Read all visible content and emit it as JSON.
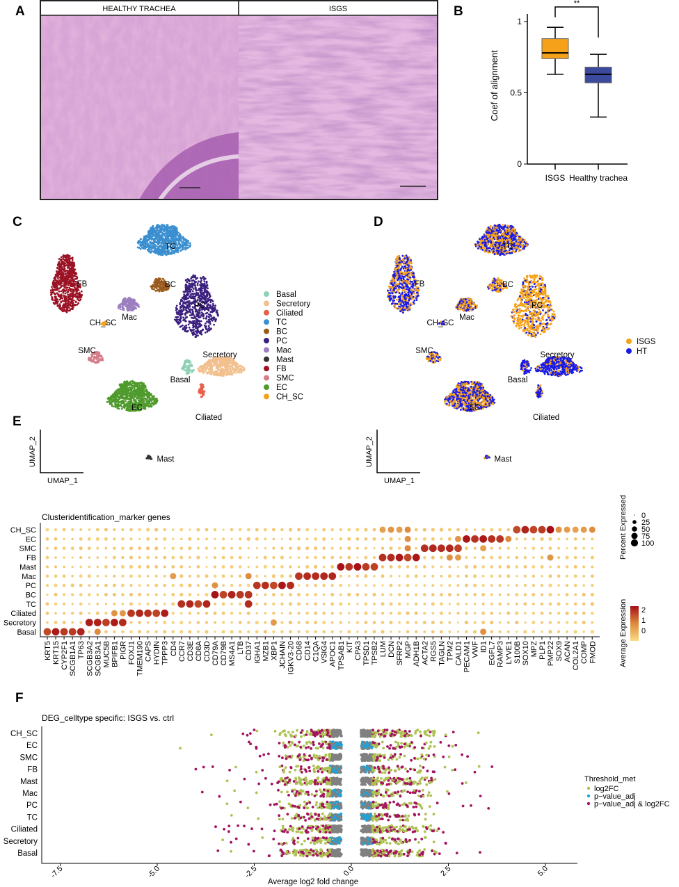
{
  "panels": {
    "A": "A",
    "B": "B",
    "C": "C",
    "D": "D",
    "E": "E",
    "F": "F"
  },
  "histology": {
    "left_title": "HEALTHY TRACHEA",
    "right_title": "ISGS"
  },
  "umap": {
    "xlabel": "UMAP_1",
    "ylabel": "UMAP_2",
    "clusters": [
      "Basal",
      "Secretory",
      "Ciliated",
      "TC",
      "BC",
      "PC",
      "Mac",
      "Mast",
      "FB",
      "SMC",
      "EC",
      "CH_SC"
    ],
    "cluster_colors": [
      "#8fd1b5",
      "#f2c08e",
      "#e8604c",
      "#3a8fd0",
      "#9a5a1c",
      "#3b1f7e",
      "#9b7fc0",
      "#333333",
      "#9b1225",
      "#d47c88",
      "#4f9a2c",
      "#f5a21a"
    ],
    "condition_legend": [
      "ISGS",
      "HT"
    ],
    "condition_colors": [
      "#f5a21a",
      "#1a1ae6"
    ]
  },
  "chart_data": [
    {
      "type": "box",
      "panel": "B",
      "ylabel": "Coef of alignment",
      "categories": [
        "ISGS",
        "Healthy trachea"
      ],
      "ylim": [
        0,
        1.1
      ],
      "yticks": [
        "0",
        "0.5",
        "1"
      ],
      "yticks_values": [
        0,
        0.5,
        1
      ],
      "series": [
        {
          "whisker_low": 0.63,
          "q1": 0.74,
          "median": 0.78,
          "q3": 0.88,
          "whisker_high": 0.96,
          "color": "#f5a21a"
        },
        {
          "whisker_low": 0.33,
          "q1": 0.57,
          "median": 0.63,
          "q3": 0.68,
          "whisker_high": 0.77,
          "color": "#3b4a9c"
        }
      ],
      "annotation": "**"
    },
    {
      "type": "dot",
      "panel": "E",
      "title": "Clusteridentification_marker genes",
      "rows": [
        "CH_SC",
        "EC",
        "SMC",
        "FB",
        "Mast",
        "Mac",
        "PC",
        "BC",
        "TC",
        "Ciliated",
        "Secretory",
        "Basal"
      ],
      "genes": [
        "KRT5",
        "KRT15",
        "CYP2F1",
        "SCGB1A1",
        "TP63",
        "SCGB3A2",
        "SCGB3A1",
        "MUC5B",
        "BPIFB1",
        "PIGR",
        "FOXJ1",
        "TMEM190",
        "CAPS",
        "HYDIN",
        "TPPP3",
        "CD4",
        "CCR7",
        "CD3E",
        "CD8A",
        "CD3D",
        "CD79A",
        "CD79B",
        "MS4A1",
        "LTB",
        "CD37",
        "IGHA1",
        "MZB1",
        "XBP1",
        "JCHAIN",
        "IGKV3-20",
        "CD68",
        "CD14",
        "C1QA",
        "VSIG4",
        "APOC1",
        "TPSAB1",
        "KIT",
        "CPA3",
        "TPSD1",
        "TPSB2",
        "LUM",
        "DCN",
        "SFRP2",
        "MGP",
        "ADH1B",
        "ACTA2",
        "RGS5",
        "TAGLN",
        "TPM2",
        "CALD1",
        "PECAM1",
        "VWF",
        "ID1",
        "EGFL7",
        "RAMP3",
        "LYVE1",
        "S100B",
        "SOX10",
        "MPZ",
        "PLP1",
        "PMP22",
        "SOX9",
        "ACAN",
        "COL2A1",
        "COMP",
        "FMOD"
      ],
      "markers": {
        "CH_SC": [
          "S100B",
          "SOX10",
          "MPZ",
          "PLP1",
          "PMP22",
          "SOX9",
          "ACAN",
          "COL2A1",
          "COMP",
          "FMOD",
          "DCN",
          "SFRP2",
          "MGP",
          "LUM"
        ],
        "EC": [
          "PECAM1",
          "VWF",
          "ID1",
          "EGFL7",
          "RAMP3",
          "LYVE1",
          "MGP",
          "CALD1"
        ],
        "SMC": [
          "ACTA2",
          "RGS5",
          "TAGLN",
          "TPM2",
          "CALD1",
          "MGP",
          "ID1"
        ],
        "FB": [
          "LUM",
          "DCN",
          "SFRP2",
          "MGP",
          "ADH1B",
          "TPM2",
          "CALD1",
          "PMP22"
        ],
        "Mast": [
          "TPSAB1",
          "KIT",
          "CPA3",
          "TPSD1",
          "TPSB2"
        ],
        "Mac": [
          "CD68",
          "CD14",
          "C1QA",
          "VSIG4",
          "APOC1",
          "CD4",
          "CD37"
        ],
        "PC": [
          "IGHA1",
          "MZB1",
          "XBP1",
          "JCHAIN",
          "IGKV3-20",
          "CD79A"
        ],
        "BC": [
          "CD79A",
          "CD79B",
          "MS4A1",
          "LTB",
          "CD37"
        ],
        "TC": [
          "CCR7",
          "CD3E",
          "CD8A",
          "CD3D",
          "CD37"
        ],
        "Ciliated": [
          "FOXJ1",
          "TMEM190",
          "CAPS",
          "HYDIN",
          "TPPP3",
          "PIGR",
          "BPIFB1"
        ],
        "Secretory": [
          "SCGB3A2",
          "SCGB3A1",
          "MUC5B",
          "BPIFB1",
          "PIGR",
          "XBP1"
        ],
        "Basal": [
          "KRT5",
          "KRT15",
          "CYP2F1",
          "SCGB1A1",
          "TP63",
          "SCGB3A1",
          "ID1"
        ]
      },
      "size_legend": {
        "title": "Percent Expressed",
        "values": [
          0,
          25,
          50,
          75,
          100
        ],
        "labels": [
          "0",
          "25",
          "50",
          "75",
          "100"
        ]
      },
      "color_legend": {
        "title": "Average Expression",
        "labels": [
          "2",
          "1",
          "0"
        ],
        "values": [
          2,
          1,
          0
        ],
        "low_color": "#fbdc85",
        "high_color": "#a50f15"
      }
    },
    {
      "type": "scatter",
      "panel": "F",
      "title": "DEG_celltype specific: ISGS vs. ctrl",
      "xlabel": "Average log2 fold change",
      "categories": [
        "CH_SC",
        "EC",
        "SMC",
        "FB",
        "Mast",
        "Mac",
        "PC",
        "TC",
        "Ciliated",
        "Secretory",
        "Basal"
      ],
      "xlim": [
        -8.5,
        5.9
      ],
      "xticks": [
        "-7.5",
        "-5.0",
        "-2.5",
        "0.0",
        "2.5",
        "5.0"
      ],
      "xticks_values": [
        -7.5,
        -5.0,
        -2.5,
        0.0,
        2.5,
        5.0
      ],
      "legend": {
        "title": "Threshold_met",
        "entries": [
          "log2FC",
          "p−value_adj",
          "p−value_adj & log2FC"
        ],
        "colors": [
          "#aec254",
          "#1ea3d8",
          "#a3135f"
        ],
        "placement": "right"
      },
      "nonsignificant_color": "#808080"
    }
  ]
}
